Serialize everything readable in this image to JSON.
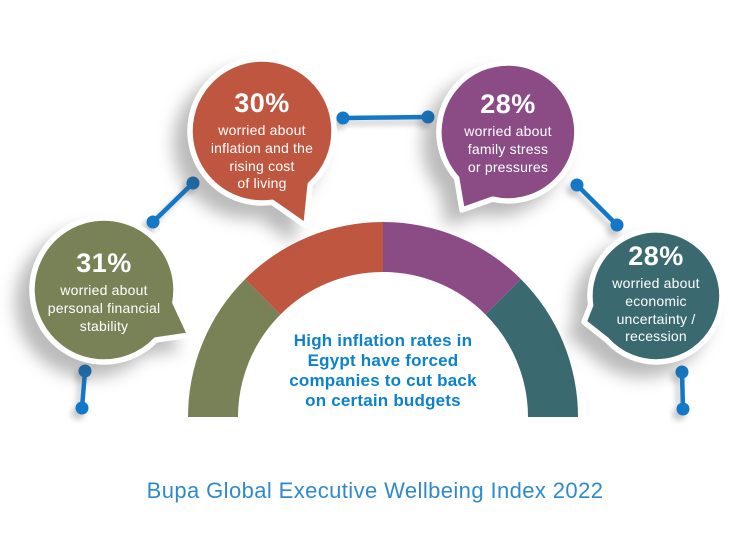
{
  "chart_data": {
    "type": "donut",
    "shape": "semicircle-gauge",
    "equal_segments": true,
    "legend_position": "speech-bubbles-around-arc",
    "segments": [
      {
        "id": "personal-financial-stability",
        "pct": "31%",
        "value": 31,
        "label": [
          "worried about",
          "personal financial",
          "stability"
        ],
        "color": "#798157"
      },
      {
        "id": "inflation-cost-of-living",
        "pct": "30%",
        "value": 30,
        "label": [
          "worried about",
          "inflation and the",
          "rising cost",
          "of living"
        ],
        "color": "#BF5740"
      },
      {
        "id": "family-stress",
        "pct": "28%",
        "value": 28,
        "label": [
          "worried about",
          "family stress",
          "or pressures"
        ],
        "color": "#8B4C86"
      },
      {
        "id": "economic-uncertainty",
        "pct": "28%",
        "value": 28,
        "label": [
          "worried about",
          "economic",
          "uncertainty /",
          "recession"
        ],
        "color": "#3A696F"
      }
    ],
    "center_text": [
      "High inflation rates in",
      "Egypt have forced",
      "companies to cut back",
      "on certain budgets"
    ],
    "caption": "Bupa Global Executive Wellbeing Index 2022",
    "accent_color": "#1478C6",
    "center_text_color": "#0C82CD",
    "caption_color": "#2F8ACC",
    "bubble_text_color": "#FFFFFF"
  }
}
